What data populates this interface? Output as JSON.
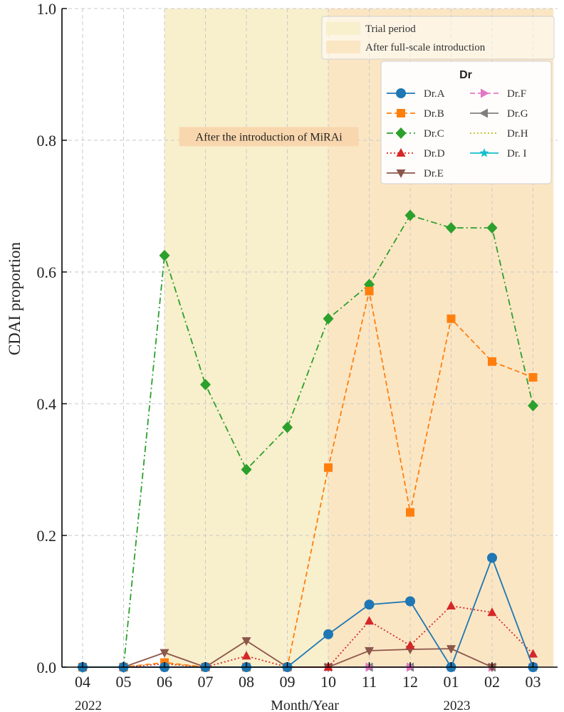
{
  "chart_data": {
    "type": "line",
    "ylabel": "CDAI proportion",
    "xlabel": "Month/Year",
    "ylim": [
      0,
      1.0
    ],
    "yticks": [
      "0.0",
      "0.2",
      "0.4",
      "0.6",
      "0.8",
      "1.0"
    ],
    "categories": [
      "04",
      "05",
      "06",
      "07",
      "08",
      "09",
      "10",
      "11",
      "12",
      "01",
      "02",
      "03"
    ],
    "years": [
      {
        "label": "2022",
        "at_index": 0
      },
      {
        "label": "2023",
        "at_index": 9
      }
    ],
    "grid": true,
    "regions": [
      {
        "label": "Trial period",
        "from_index": 2,
        "to_index": 6,
        "color": "#f8efcc"
      },
      {
        "label": "After full-scale introduction",
        "from_index": 6,
        "to_index": 11.5,
        "color": "#fbe6c4"
      }
    ],
    "annotation": {
      "text": "After the introduction of MiRAi",
      "color": "#f9d7ae",
      "x_index": 4.55,
      "y": 0.805
    },
    "legend_title": "Dr",
    "legend_position": "top-right",
    "series": [
      {
        "name": "Dr.A",
        "color": "#1f77b4",
        "marker": "circle",
        "dash": "solid",
        "values": [
          0,
          0,
          0,
          0,
          0,
          0,
          0.05,
          0.095,
          0.1,
          0,
          0.166,
          0
        ]
      },
      {
        "name": "Dr.B",
        "color": "#ff7f0e",
        "marker": "square",
        "dash": "dashed",
        "values": [
          0,
          0,
          0.007,
          0,
          0,
          0,
          0.303,
          0.571,
          0.235,
          0.529,
          0.464,
          0.44
        ]
      },
      {
        "name": "Dr.C",
        "color": "#2ca02c",
        "marker": "diamond",
        "dash": "dashdot",
        "values": [
          0,
          0,
          0.625,
          0.429,
          0.3,
          0.364,
          0.529,
          0.581,
          0.686,
          0.667,
          0.667,
          0.397
        ]
      },
      {
        "name": "Dr.D",
        "color": "#d62728",
        "marker": "triangle-up",
        "dash": "dotted",
        "values": [
          0,
          0,
          0.005,
          0,
          0.017,
          0,
          0,
          0.07,
          0.033,
          0.093,
          0.083,
          0.02
        ]
      },
      {
        "name": "Dr.E",
        "color": "#8c564b",
        "marker": "triangle-down",
        "dash": "solid",
        "values": [
          0,
          0,
          0.022,
          0,
          0.04,
          0,
          0,
          0.025,
          0.027,
          0.028,
          0,
          0
        ]
      },
      {
        "name": "Dr.F",
        "color": "#e377c2",
        "marker": "triangle-right",
        "dash": "dashed",
        "values": [
          0,
          0,
          0,
          0,
          0,
          0,
          0,
          0,
          0,
          0,
          0,
          0
        ]
      },
      {
        "name": "Dr.G",
        "color": "#7f7f7f",
        "marker": "triangle-left",
        "dash": "solid",
        "values": [
          0,
          0,
          0,
          0,
          0,
          0,
          0,
          0,
          0,
          0,
          0,
          0
        ]
      },
      {
        "name": "Dr.H",
        "color": "#bcbd22",
        "marker": "none",
        "dash": "dotted",
        "values": [
          0,
          0,
          0,
          0,
          0,
          0,
          0,
          0,
          0,
          0,
          0,
          0
        ]
      },
      {
        "name": "Dr. I",
        "color": "#17becf",
        "marker": "star",
        "dash": "solid",
        "values": [
          0,
          0,
          0,
          0,
          0,
          0,
          0,
          0,
          0,
          0,
          0,
          0
        ]
      }
    ]
  }
}
